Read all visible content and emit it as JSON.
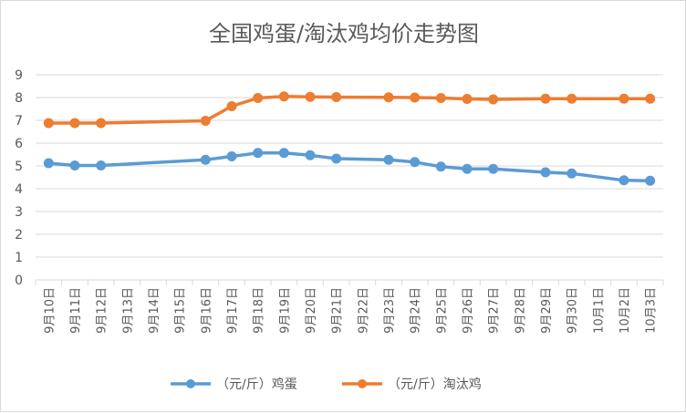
{
  "chart_data": {
    "type": "line",
    "title": "全国鸡蛋/淘汰鸡均价走势图",
    "categories": [
      "9月10日",
      "9月11日",
      "9月12日",
      "9月13日",
      "9月14日",
      "9月15日",
      "9月16日",
      "9月17日",
      "9月18日",
      "9月19日",
      "9月20日",
      "9月21日",
      "9月22日",
      "9月23日",
      "9月24日",
      "9月25日",
      "9月26日",
      "9月27日",
      "9月28日",
      "9月29日",
      "9月30日",
      "10月1日",
      "10月2日",
      "10月3日"
    ],
    "ylim": [
      0,
      9
    ],
    "yticks": [
      0,
      1,
      2,
      3,
      4,
      5,
      6,
      7,
      8,
      9
    ],
    "grid": true,
    "legend_position": "bottom",
    "series": [
      {
        "name": "（元/斤）鸡蛋",
        "color": "#5b9bd5",
        "values": [
          5.12,
          5.02,
          5.02,
          null,
          null,
          null,
          5.27,
          5.42,
          5.57,
          5.57,
          5.47,
          5.32,
          null,
          5.27,
          5.17,
          4.97,
          4.87,
          4.87,
          null,
          4.72,
          4.67,
          null,
          4.37,
          4.35
        ]
      },
      {
        "name": "（元/斤）淘汰鸡",
        "color": "#ed7d31",
        "values": [
          6.88,
          6.88,
          6.88,
          null,
          null,
          null,
          6.98,
          7.62,
          7.98,
          8.05,
          8.03,
          8.02,
          null,
          8.01,
          8.0,
          7.98,
          7.94,
          7.92,
          null,
          7.95,
          7.95,
          null,
          7.95,
          7.95
        ]
      }
    ]
  }
}
